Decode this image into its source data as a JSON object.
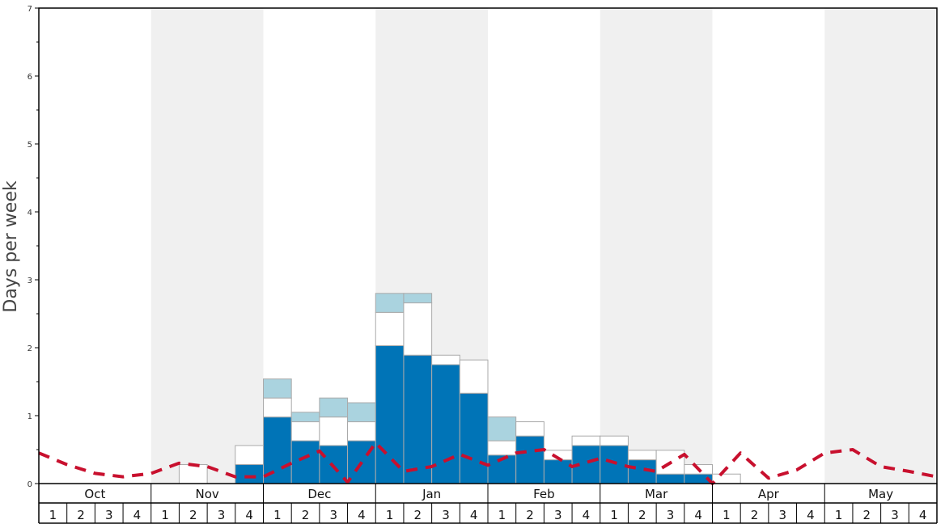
{
  "chart_data": {
    "type": "bar",
    "ylabel": "Days per week",
    "ylim": [
      0,
      7
    ],
    "yticks": [
      "0",
      "1",
      "2",
      "3",
      "4",
      "5",
      "6",
      "7"
    ],
    "months": [
      "Oct",
      "Nov",
      "Dec",
      "Jan",
      "Feb",
      "Mar",
      "Apr",
      "May"
    ],
    "weeks": [
      "1",
      "2",
      "3",
      "4"
    ],
    "month_shading": [
      false,
      true,
      false,
      true,
      false,
      true,
      false,
      true
    ],
    "colors": {
      "dark": "#0074b7",
      "white": "#ffffff",
      "light": "#aad3df",
      "dashed_line": "#c8102e",
      "shade": "#f0f0f0",
      "bar_stroke": "#aaaaaa"
    },
    "series": [
      {
        "values": [
          0,
          0,
          0,
          0,
          0,
          0,
          0,
          0.28,
          0.98,
          0.63,
          0.56,
          0.63,
          2.03,
          1.89,
          1.75,
          1.33,
          0.42,
          0.7,
          0.35,
          0.56,
          0.56,
          0.35,
          0.14,
          0.14,
          0,
          0,
          0,
          0,
          0,
          0,
          0,
          0
        ]
      },
      {
        "values": [
          0,
          0,
          0,
          0,
          0,
          0.28,
          0,
          0.28,
          0.28,
          0.28,
          0.42,
          0.28,
          0.49,
          0.77,
          0.14,
          0.49,
          0.21,
          0.21,
          0.14,
          0.14,
          0.14,
          0.14,
          0.35,
          0.14,
          0.14,
          0,
          0,
          0,
          0,
          0,
          0,
          0
        ]
      },
      {
        "values": [
          0,
          0,
          0,
          0,
          0,
          0,
          0,
          0,
          0.28,
          0.14,
          0.28,
          0.28,
          0.28,
          0.14,
          0,
          0,
          0.35,
          0,
          0,
          0,
          0,
          0,
          0,
          0,
          0,
          0,
          0,
          0,
          0,
          0,
          0,
          0
        ]
      },
      {
        "type": "line",
        "style": "dashed",
        "values": [
          0.45,
          0.28,
          0.15,
          0.1,
          0.15,
          0.3,
          0.25,
          0.1,
          0.1,
          0.3,
          0.48,
          0.02,
          0.6,
          0.18,
          0.25,
          0.43,
          0.27,
          0.45,
          0.5,
          0.25,
          0.37,
          0.25,
          0.18,
          0.43,
          0.0,
          0.45,
          0.08,
          0.2,
          0.45,
          0.5,
          0.25,
          0.18,
          0.1
        ]
      }
    ]
  }
}
